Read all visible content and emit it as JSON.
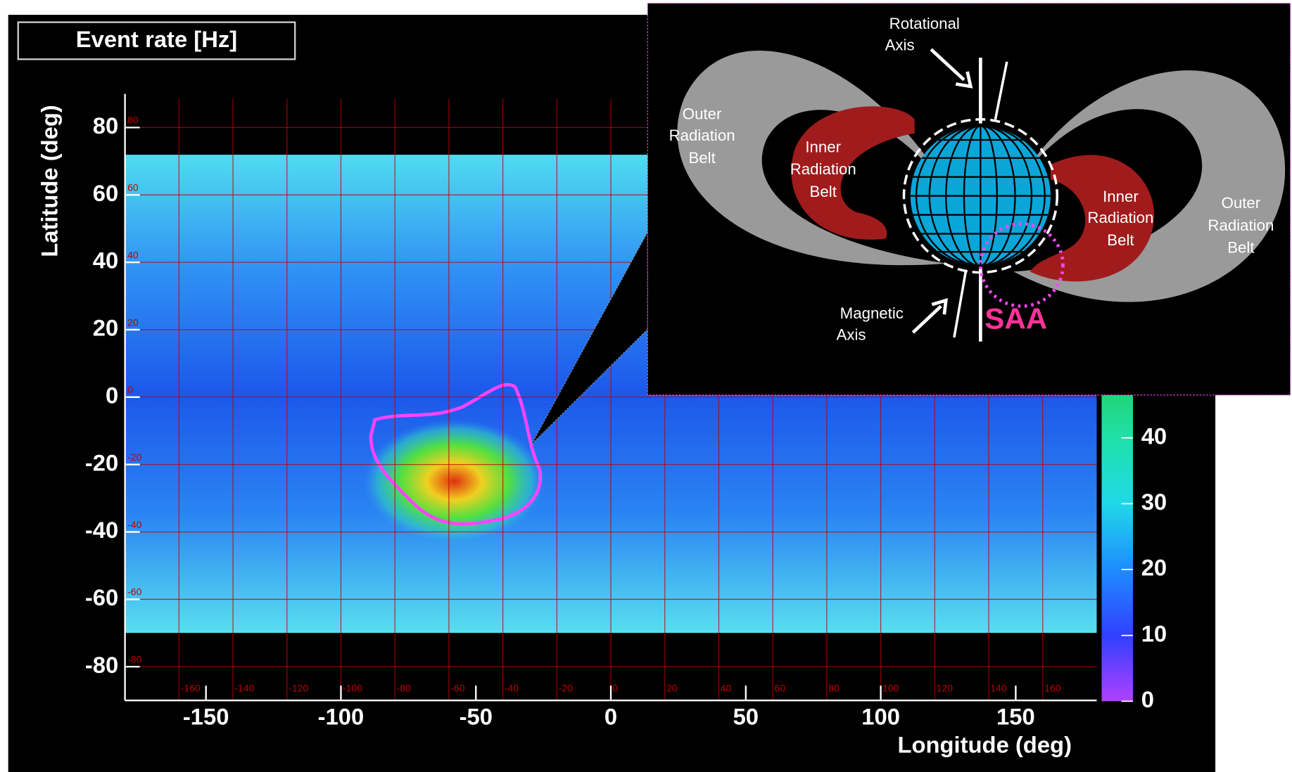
{
  "chart_data": {
    "type": "heatmap",
    "title": "Event rate [Hz]",
    "x_label": "Longitude (deg)",
    "y_label": "Latitude (deg)",
    "xlim": [
      -180,
      180
    ],
    "ylim": [
      -90,
      90
    ],
    "xticks": [
      -150,
      -100,
      -50,
      0,
      50,
      100,
      150
    ],
    "yticks": [
      -80,
      -60,
      -40,
      -20,
      0,
      20,
      40,
      60,
      80
    ],
    "map_grid": {
      "color": "#c00000",
      "lon": [
        -160,
        -140,
        -120,
        -100,
        -80,
        -60,
        -40,
        -20,
        0,
        20,
        40,
        60,
        80,
        100,
        120,
        140,
        160
      ],
      "lat": [
        -80,
        -60,
        -40,
        -20,
        0,
        20,
        40,
        60,
        80
      ]
    },
    "colorbar": {
      "lim": [
        0,
        50
      ],
      "ticks": [
        0,
        10,
        20,
        30,
        40
      ]
    }
  },
  "inset": {
    "rotational_axis": [
      "Rotational",
      "Axis"
    ],
    "magnetic_axis": [
      "Magnetic",
      "Axis"
    ],
    "outer_belt_left": [
      "Outer",
      "Radiation",
      "Belt"
    ],
    "inner_belt_left": [
      "Inner",
      "Radiation",
      "Belt"
    ],
    "inner_belt_right": [
      "Inner",
      "Radiation",
      "Belt"
    ],
    "outer_belt_right": [
      "Outer",
      "Radiation",
      "Belt"
    ],
    "saa": "SAA"
  }
}
